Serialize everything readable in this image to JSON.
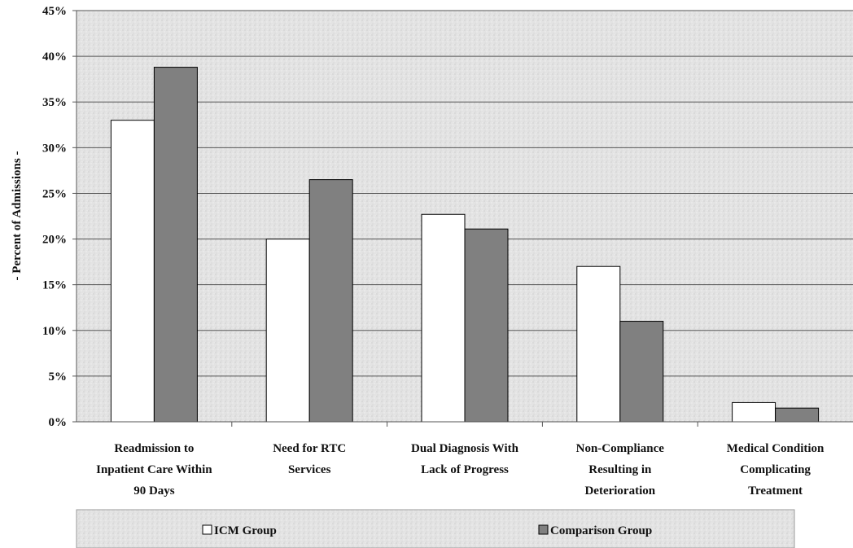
{
  "chart_data": {
    "type": "bar",
    "ylabel": "- Percent of Admissions -",
    "xlabel": "",
    "ylim": [
      0,
      45
    ],
    "y_ticks": [
      "0%",
      "5%",
      "10%",
      "15%",
      "20%",
      "25%",
      "30%",
      "35%",
      "40%",
      "45%"
    ],
    "grid": true,
    "legend_position": "bottom",
    "categories": [
      [
        "Readmission to",
        "Inpatient Care Within",
        "90 Days"
      ],
      [
        "Need for RTC",
        "Services"
      ],
      [
        "Dual Diagnosis With",
        "Lack of Progress"
      ],
      [
        "Non-Compliance",
        "Resulting in",
        "Deterioration"
      ],
      [
        "Medical Condition",
        "Complicating",
        "Treatment"
      ]
    ],
    "series": [
      {
        "name": "ICM Group",
        "values": [
          33.0,
          20.0,
          22.7,
          17.0,
          2.1
        ],
        "color": "#ffffff"
      },
      {
        "name": "Comparison Group",
        "values": [
          38.8,
          26.5,
          21.1,
          11.0,
          1.5
        ],
        "color": "#808080"
      }
    ]
  }
}
